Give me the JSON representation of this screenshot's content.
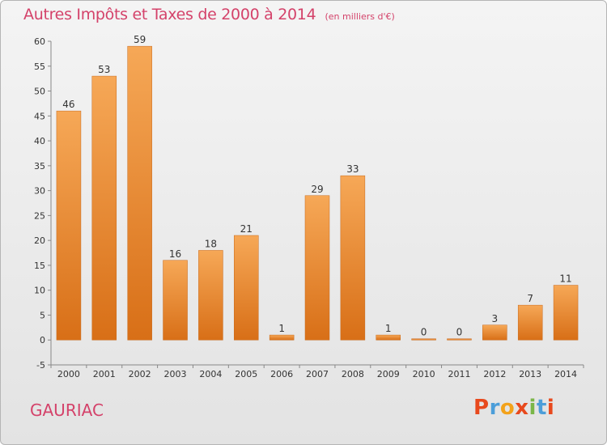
{
  "header": {
    "title": "Autres Impôts et Taxes de 2000 à 2014",
    "subtitle": "(en milliers d'€)"
  },
  "footer": {
    "commune": "GAURIAC",
    "brand": "Proxiti"
  },
  "colors": {
    "title": "#d4426a",
    "bar_light": "#f6a857",
    "bar_dark": "#d86f17",
    "brand_letters": [
      "#e8491d",
      "#4c9ed9",
      "#f3a21a",
      "#e8491d",
      "#7ab648",
      "#4c9ed9",
      "#e8491d"
    ]
  },
  "chart_data": {
    "type": "bar",
    "categories": [
      "2000",
      "2001",
      "2002",
      "2003",
      "2004",
      "2005",
      "2006",
      "2007",
      "2008",
      "2009",
      "2010",
      "2011",
      "2012",
      "2013",
      "2014"
    ],
    "values": [
      46,
      53,
      59,
      16,
      18,
      21,
      1,
      29,
      33,
      1,
      0,
      0,
      3,
      7,
      11
    ],
    "data_labels": [
      "46",
      "53",
      "59",
      "16",
      "18",
      "21",
      "1",
      "29",
      "33",
      "1",
      "0",
      "0",
      "3",
      "7",
      "11"
    ],
    "yticks": [
      -5,
      0,
      5,
      10,
      15,
      20,
      25,
      30,
      35,
      40,
      45,
      50,
      55,
      60
    ],
    "ylim": [
      -5,
      60
    ],
    "grid": false
  }
}
